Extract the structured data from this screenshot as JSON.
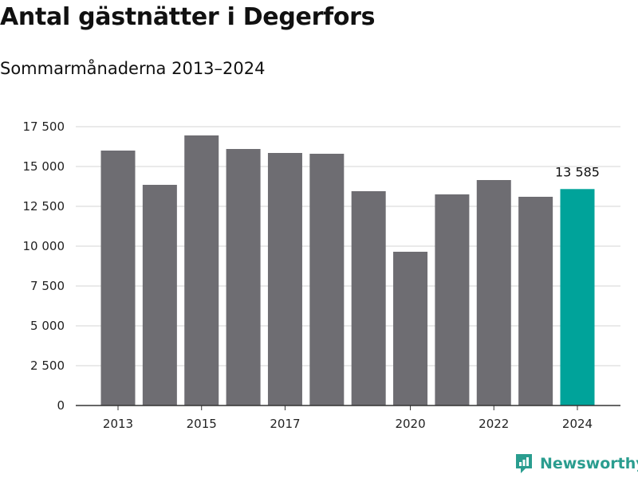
{
  "title": "Antal gästnätter i Degerfors",
  "subtitle": "Sommarmånaderna 2013–2024",
  "brand": {
    "name": "Newsworthy",
    "icon": "newsworthy-logo-icon"
  },
  "colors": {
    "bar": "#6e6d72",
    "highlight": "#00a39a",
    "grid": "#dddddd",
    "brand": "#2a9d8f"
  },
  "chart_data": {
    "type": "bar",
    "categories": [
      "2013",
      "2014",
      "2015",
      "2016",
      "2017",
      "2018",
      "2019",
      "2020",
      "2021",
      "2022",
      "2023",
      "2024"
    ],
    "x_tick_labels": [
      "2013",
      "2015",
      "2017",
      "2020",
      "2022",
      "2024"
    ],
    "values": [
      16000,
      13850,
      16950,
      16100,
      15850,
      15800,
      13450,
      9650,
      13250,
      14150,
      13100,
      13585
    ],
    "y_ticks": [
      0,
      2500,
      5000,
      7500,
      10000,
      12500,
      15000,
      17500
    ],
    "y_tick_labels": [
      "0",
      "2 500",
      "5 000",
      "7 500",
      "10 000",
      "12 500",
      "15 000",
      "17 500"
    ],
    "ylim": [
      0,
      17500
    ],
    "highlight_category": "2024",
    "data_labels": [
      {
        "category": "2024",
        "text": "13 585"
      }
    ],
    "grid": true,
    "legend": "none"
  }
}
